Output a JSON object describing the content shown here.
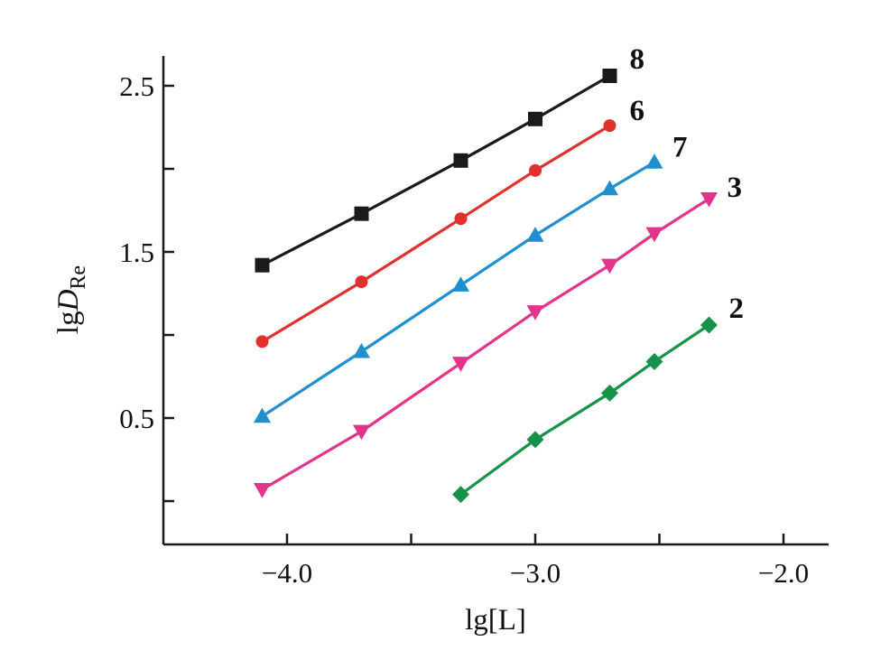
{
  "chart_data": {
    "type": "line",
    "title": "",
    "xlabel": "lg[L]",
    "ylabel": {
      "main": "lg",
      "italic": "D",
      "sub": "Re"
    },
    "xlim": [
      -4.5,
      -1.8
    ],
    "ylim": [
      -0.25,
      2.85
    ],
    "x_ticks_major": [
      -4.0,
      -3.0,
      -2.0
    ],
    "x_tick_labels": [
      "−4.0",
      "−3.0",
      "−2.0"
    ],
    "x_ticks_minor": [
      -3.5,
      -2.5
    ],
    "y_ticks_major": [
      0.5,
      1.5,
      2.5
    ],
    "y_tick_labels": [
      "0.5",
      "1.5",
      "2.5"
    ],
    "y_ticks_minor": [
      0.0,
      1.0,
      2.0
    ],
    "grid": false,
    "legend": "none",
    "series": [
      {
        "name": "8",
        "marker": "square",
        "color": "#1a1a1a",
        "x": [
          -4.1,
          -3.7,
          -3.3,
          -3.0,
          -2.7
        ],
        "y": [
          1.42,
          1.73,
          2.05,
          2.3,
          2.56
        ]
      },
      {
        "name": "6",
        "marker": "circle",
        "color": "#e0312f",
        "x": [
          -4.1,
          -3.7,
          -3.3,
          -3.0,
          -2.7
        ],
        "y": [
          0.96,
          1.32,
          1.7,
          1.99,
          2.26
        ]
      },
      {
        "name": "7",
        "marker": "triangle-up",
        "color": "#1f8fcf",
        "x": [
          -4.1,
          -3.7,
          -3.3,
          -3.0,
          -2.7,
          -2.52
        ],
        "y": [
          0.51,
          0.9,
          1.3,
          1.6,
          1.88,
          2.04
        ]
      },
      {
        "name": "3",
        "marker": "triangle-down",
        "color": "#e3348c",
        "x": [
          -4.1,
          -3.7,
          -3.3,
          -3.0,
          -2.7,
          -2.52,
          -2.3
        ],
        "y": [
          0.07,
          0.42,
          0.83,
          1.14,
          1.42,
          1.61,
          1.82
        ]
      },
      {
        "name": "2",
        "marker": "diamond",
        "color": "#16934a",
        "x": [
          -3.3,
          -3.0,
          -2.7,
          -2.52,
          -2.3
        ],
        "y": [
          0.04,
          0.37,
          0.65,
          0.84,
          1.06
        ]
      }
    ]
  }
}
